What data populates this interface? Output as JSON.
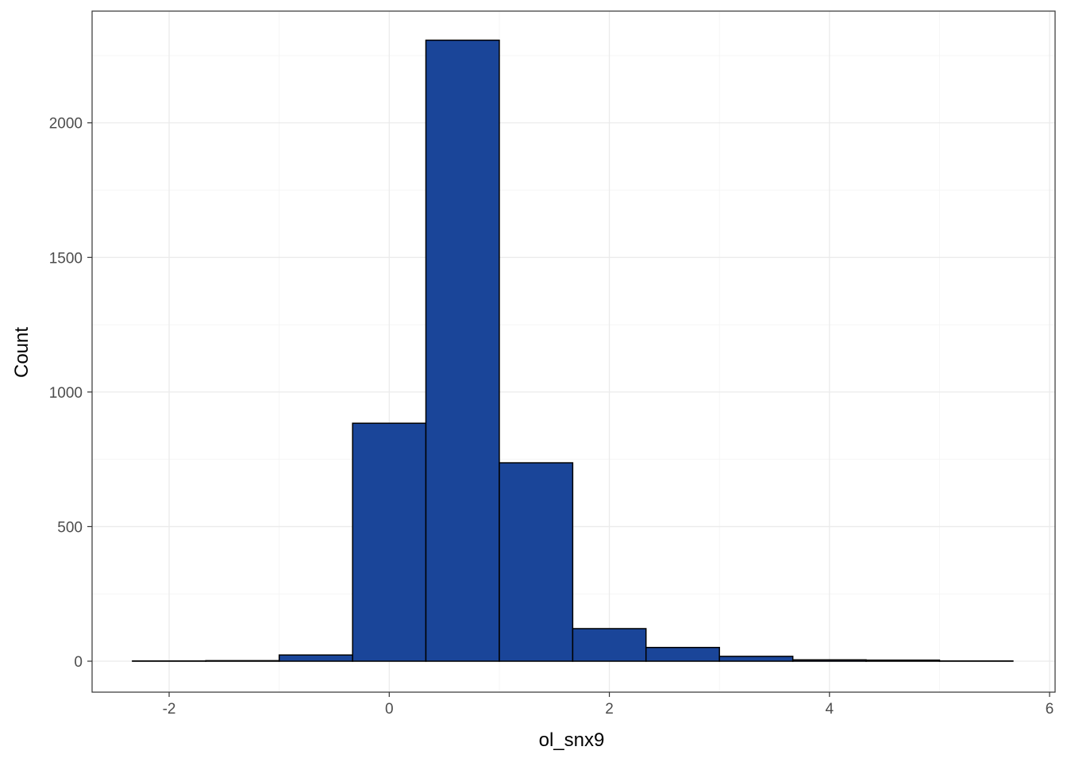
{
  "chart_data": {
    "type": "bar",
    "title": "",
    "xlabel": "ol_snx9",
    "ylabel": "Count",
    "xlim": [
      -2.7,
      6.05
    ],
    "ylim": [
      -115,
      2415
    ],
    "x_ticks": [
      -2,
      0,
      2,
      4,
      6
    ],
    "y_ticks": [
      0,
      500,
      1000,
      1500,
      2000
    ],
    "x_tick_labels": [
      "-2",
      "0",
      "2",
      "4",
      "6"
    ],
    "y_tick_labels": [
      "0",
      "500",
      "1000",
      "1500",
      "2000"
    ],
    "grid": true,
    "legend": "none",
    "bins": [
      {
        "x0": -2.333,
        "x1": -1.667,
        "count": 1
      },
      {
        "x0": -1.667,
        "x1": -1.0,
        "count": 2
      },
      {
        "x0": -1.0,
        "x1": -0.333,
        "count": 23
      },
      {
        "x0": -0.333,
        "x1": 0.333,
        "count": 884
      },
      {
        "x0": 0.333,
        "x1": 1.0,
        "count": 2307
      },
      {
        "x0": 1.0,
        "x1": 1.667,
        "count": 737
      },
      {
        "x0": 1.667,
        "x1": 2.333,
        "count": 121
      },
      {
        "x0": 2.333,
        "x1": 3.0,
        "count": 51
      },
      {
        "x0": 3.0,
        "x1": 3.667,
        "count": 18
      },
      {
        "x0": 3.667,
        "x1": 4.333,
        "count": 5
      },
      {
        "x0": 4.333,
        "x1": 5.0,
        "count": 4
      },
      {
        "x0": 5.0,
        "x1": 5.667,
        "count": 1
      }
    ],
    "colors": {
      "bar_fill": "#1A4599",
      "bar_stroke": "#000000",
      "grid_major": "#EBEBEB",
      "grid_minor": "#F5F5F5",
      "panel_border": "#333333"
    }
  }
}
